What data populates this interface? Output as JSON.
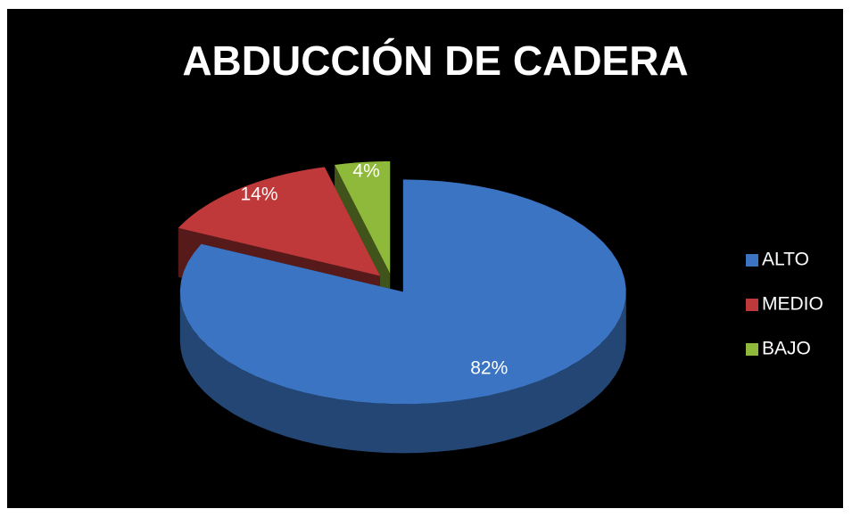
{
  "chart_data": {
    "type": "pie",
    "title": "ABDUCCIÓN DE CADERA",
    "categories": [
      "ALTO",
      "MEDIO",
      "BAJO"
    ],
    "values": [
      82,
      14,
      4
    ],
    "value_labels": [
      "82%",
      "14%",
      "4%"
    ],
    "colors": [
      "#3b74c2",
      "#c0393a",
      "#8fb93b"
    ],
    "legend": "right"
  }
}
